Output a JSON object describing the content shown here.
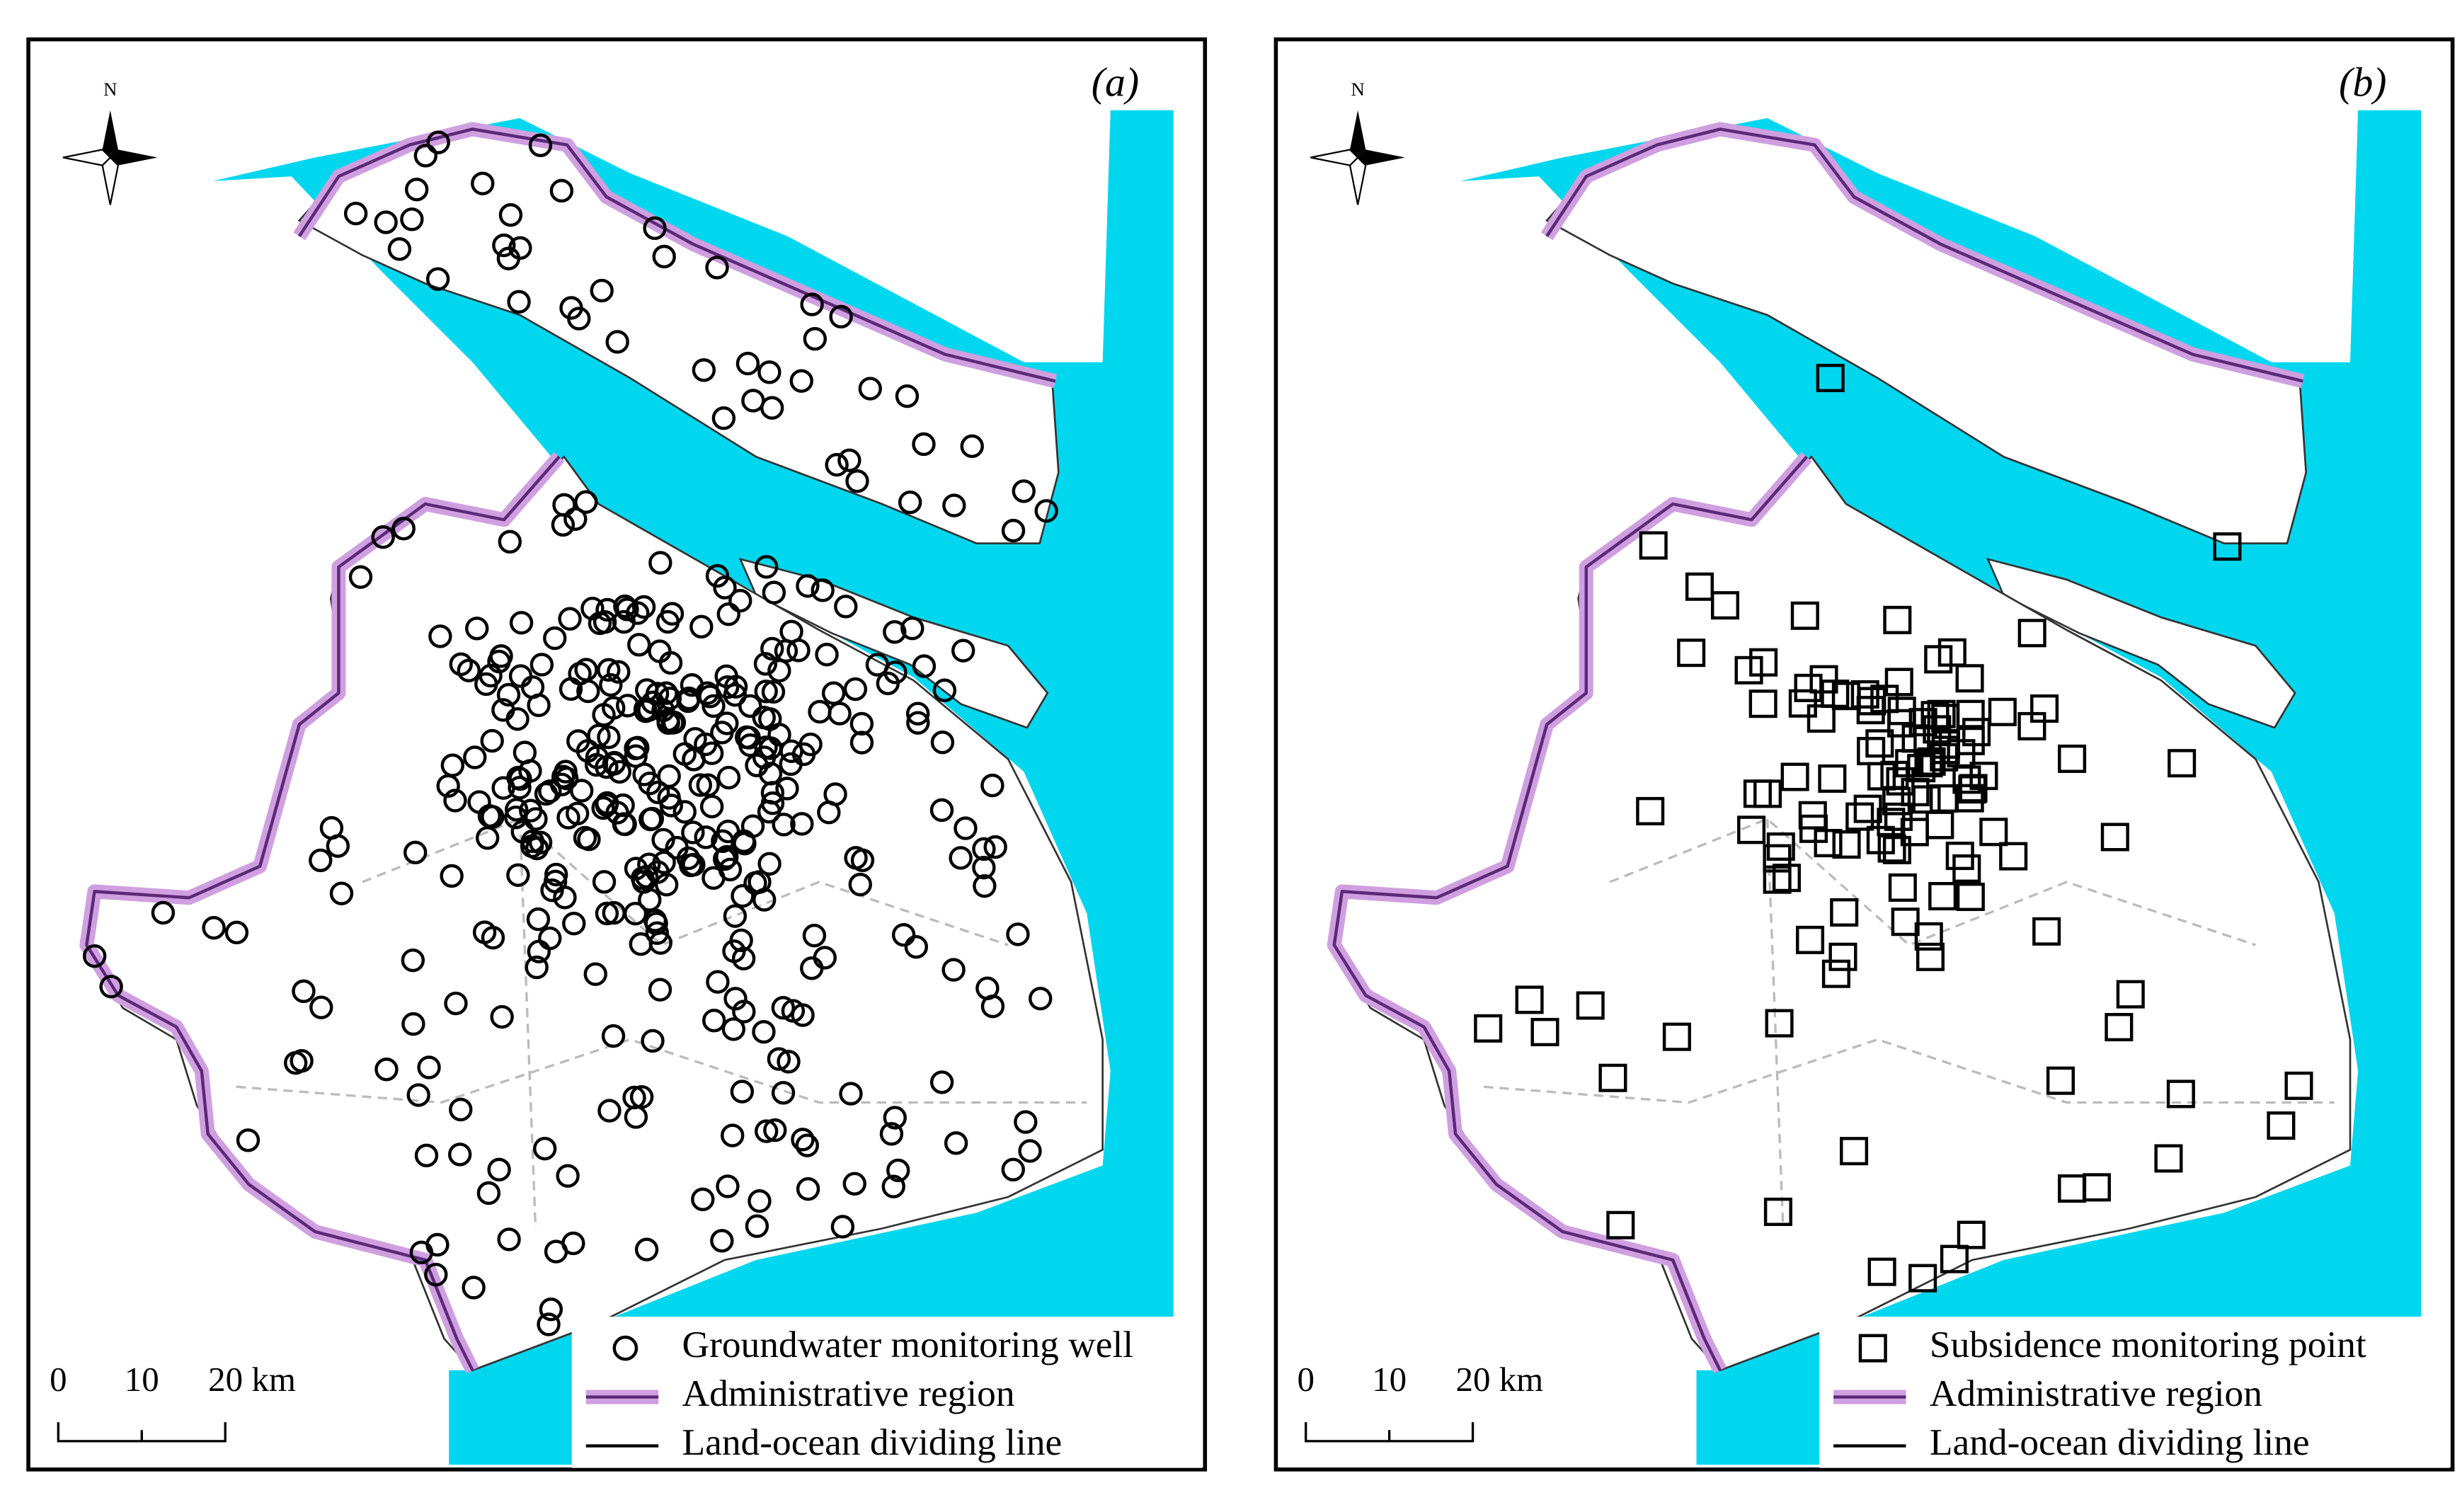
{
  "panels": [
    {
      "label": "(a)",
      "north": "N",
      "scale": [
        "0",
        "10",
        "20 km"
      ],
      "legend": [
        "Groundwater monitoring well",
        "Administrative region",
        "Land-ocean dividing line"
      ]
    },
    {
      "label": "(b)",
      "north": "N",
      "scale": [
        "0",
        "10",
        "20 km"
      ],
      "legend": [
        "Subsidence monitoring point",
        "Administrative region",
        "Land-ocean dividing line"
      ]
    }
  ]
}
